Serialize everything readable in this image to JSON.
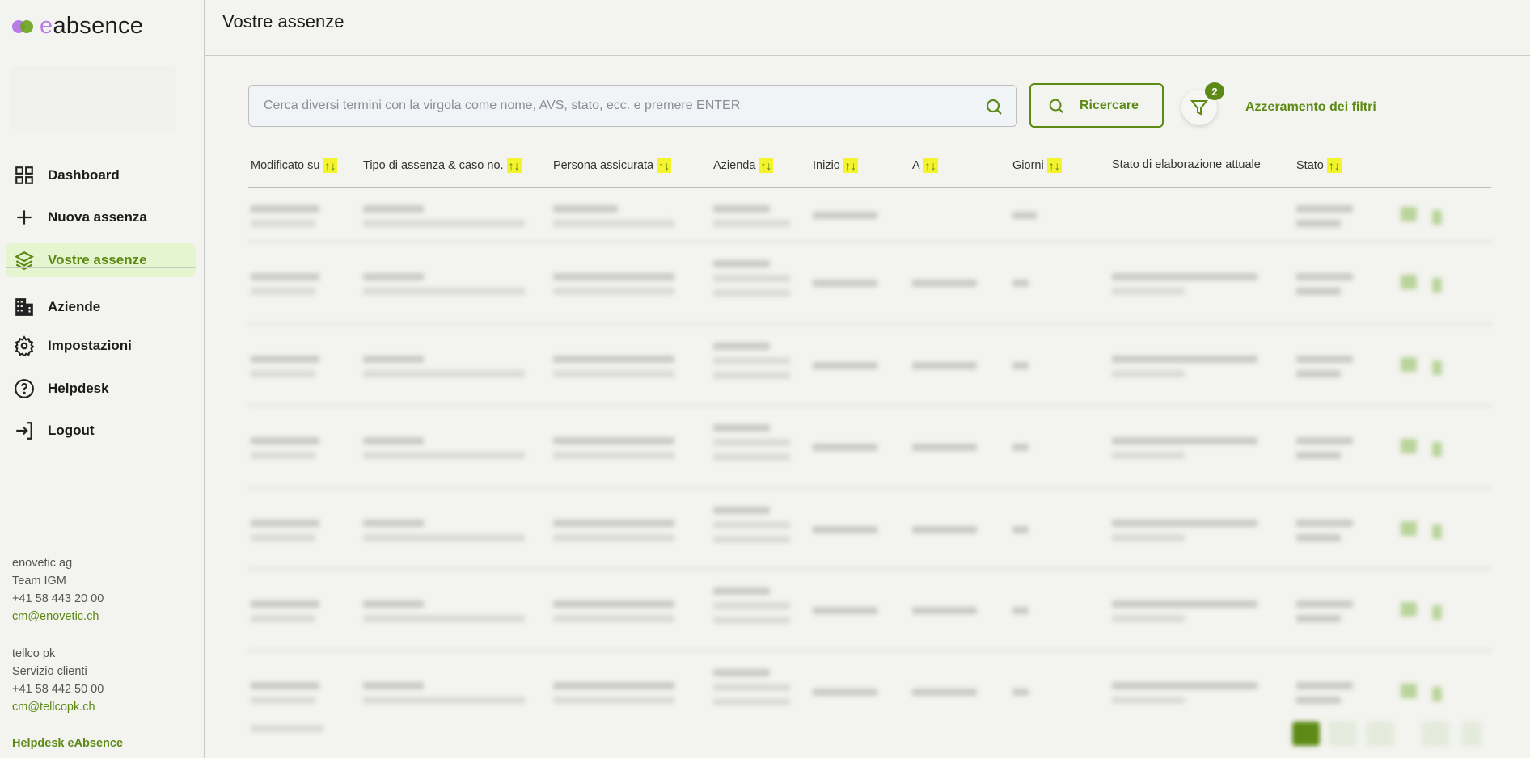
{
  "app": {
    "logo": "eabsence",
    "logo_colors": [
      "#b77ce8",
      "#6aa31c"
    ]
  },
  "sidebar": {
    "items": [
      {
        "label": "Dashboard",
        "icon": "grid-icon"
      },
      {
        "label": "Nuova assenza",
        "icon": "plus-icon"
      },
      {
        "label": "Vostre assenze",
        "icon": "layers-icon",
        "active": true
      },
      {
        "label": "Aziende",
        "icon": "building-icon"
      },
      {
        "label": "Impostazioni",
        "icon": "gear-icon"
      },
      {
        "label": "Helpdesk",
        "icon": "help-circle-icon"
      },
      {
        "label": "Logout",
        "icon": "logout-icon"
      }
    ],
    "contacts": [
      {
        "company": "enovetic ag",
        "team": "Team IGM",
        "phone": "+41 58 443 20 00",
        "email": "cm@enovetic.ch"
      },
      {
        "company": "tellco pk",
        "team": "Servizio clienti",
        "phone": "+41 58 442 50 00",
        "email": "cm@tellcopk.ch"
      }
    ],
    "helpdesk_link": "Helpdesk eAbsence"
  },
  "header": {
    "title": "Vostre assenze"
  },
  "search": {
    "placeholder": "Cerca diversi termini con la virgola come nome, AVS, stato, ecc. e premere ENTER",
    "value": "",
    "button": "Ricercare",
    "filter_count": "2",
    "reset": "Azzeramento dei filtri"
  },
  "table": {
    "sort_glyph": "↑↓",
    "columns": [
      {
        "label": "Modificato su",
        "sortable": true
      },
      {
        "label": "Tipo di assenza & caso no.",
        "sortable": true
      },
      {
        "label": "Persona assicurata",
        "sortable": true
      },
      {
        "label": "Azienda",
        "sortable": true
      },
      {
        "label": "Inizio",
        "sortable": true
      },
      {
        "label": "A",
        "sortable": true
      },
      {
        "label": "Giorni",
        "sortable": true
      },
      {
        "label": "Stato di elaborazione attuale",
        "sortable": false
      },
      {
        "label": "Stato",
        "sortable": true
      }
    ],
    "row_count": 7,
    "rows_blurred": true
  },
  "colors": {
    "accent": "#5c8a14",
    "active_bg": "#e5f5cf",
    "sort_bg": "#f3f32e"
  }
}
